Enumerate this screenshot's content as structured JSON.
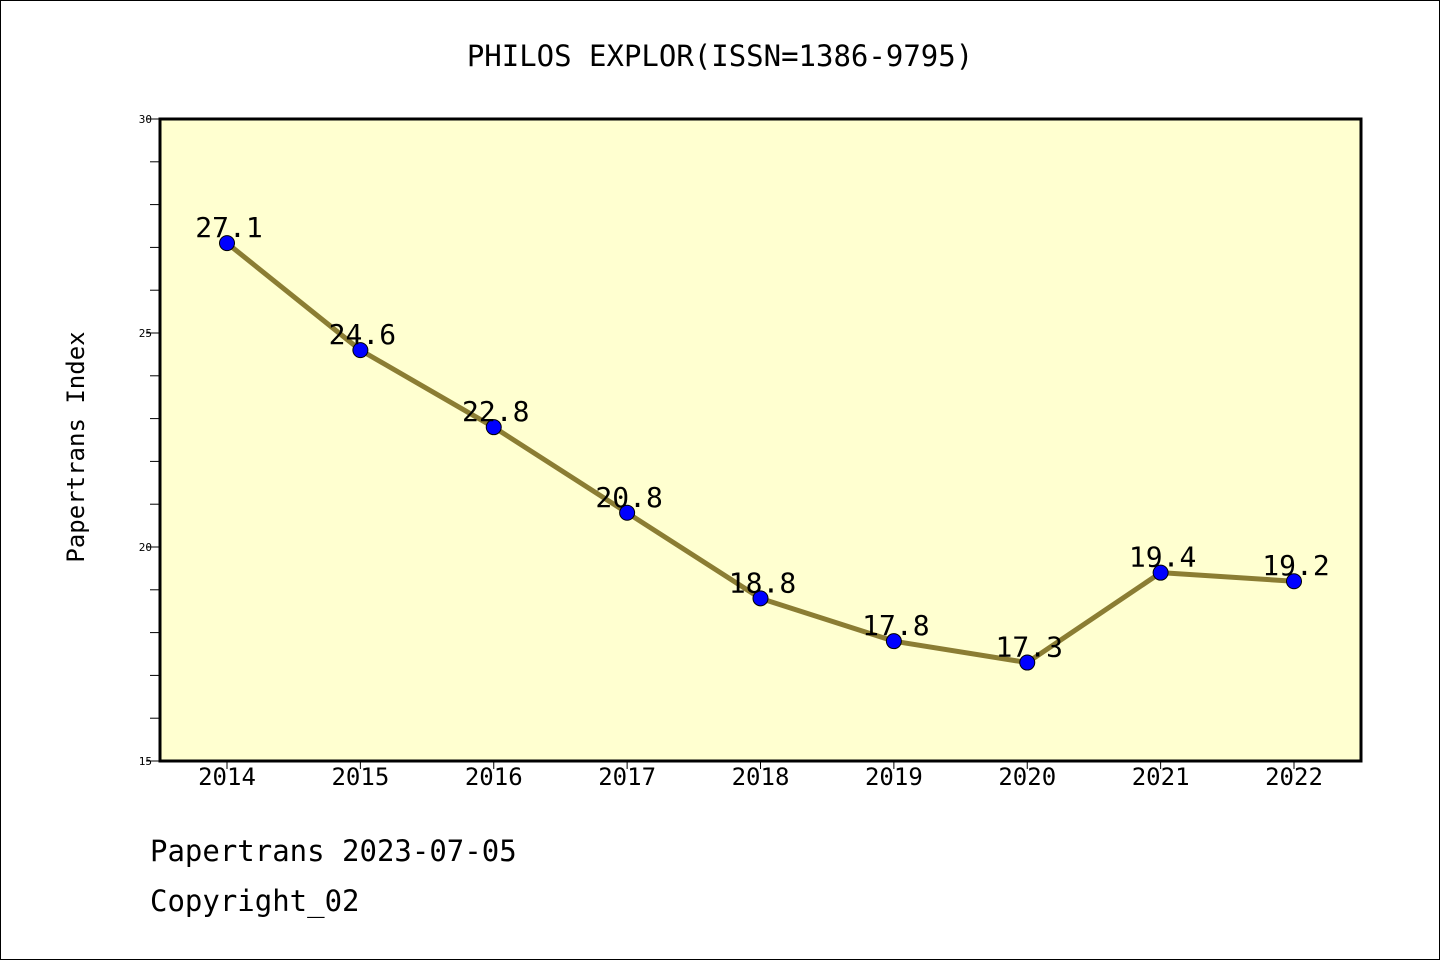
{
  "chart_data": {
    "type": "line",
    "title": "PHILOS EXPLOR(ISSN=1386-9795)",
    "ylabel": "Papertrans Index",
    "xlabel": "",
    "categories": [
      "2014",
      "2015",
      "2016",
      "2017",
      "2018",
      "2019",
      "2020",
      "2021",
      "2022"
    ],
    "series": [
      {
        "values": [
          27.1,
          24.6,
          22.8,
          20.8,
          18.8,
          17.8,
          17.3,
          19.4,
          19.2
        ]
      }
    ],
    "data_labels": [
      "27.1",
      "24.6",
      "22.8",
      "20.8",
      "18.8",
      "17.8",
      "17.3",
      "19.4",
      "19.2"
    ],
    "ylim": [
      15,
      30
    ],
    "y_ticks": [
      15,
      20,
      25,
      30
    ],
    "y_minor_step": 1,
    "grid": false,
    "colors": {
      "plot_background": "#ffffd0",
      "line": "#8b7d33",
      "marker": "#0000ff"
    }
  },
  "footer": {
    "line1": "Papertrans 2023-07-05",
    "line2": "Copyright_02"
  }
}
